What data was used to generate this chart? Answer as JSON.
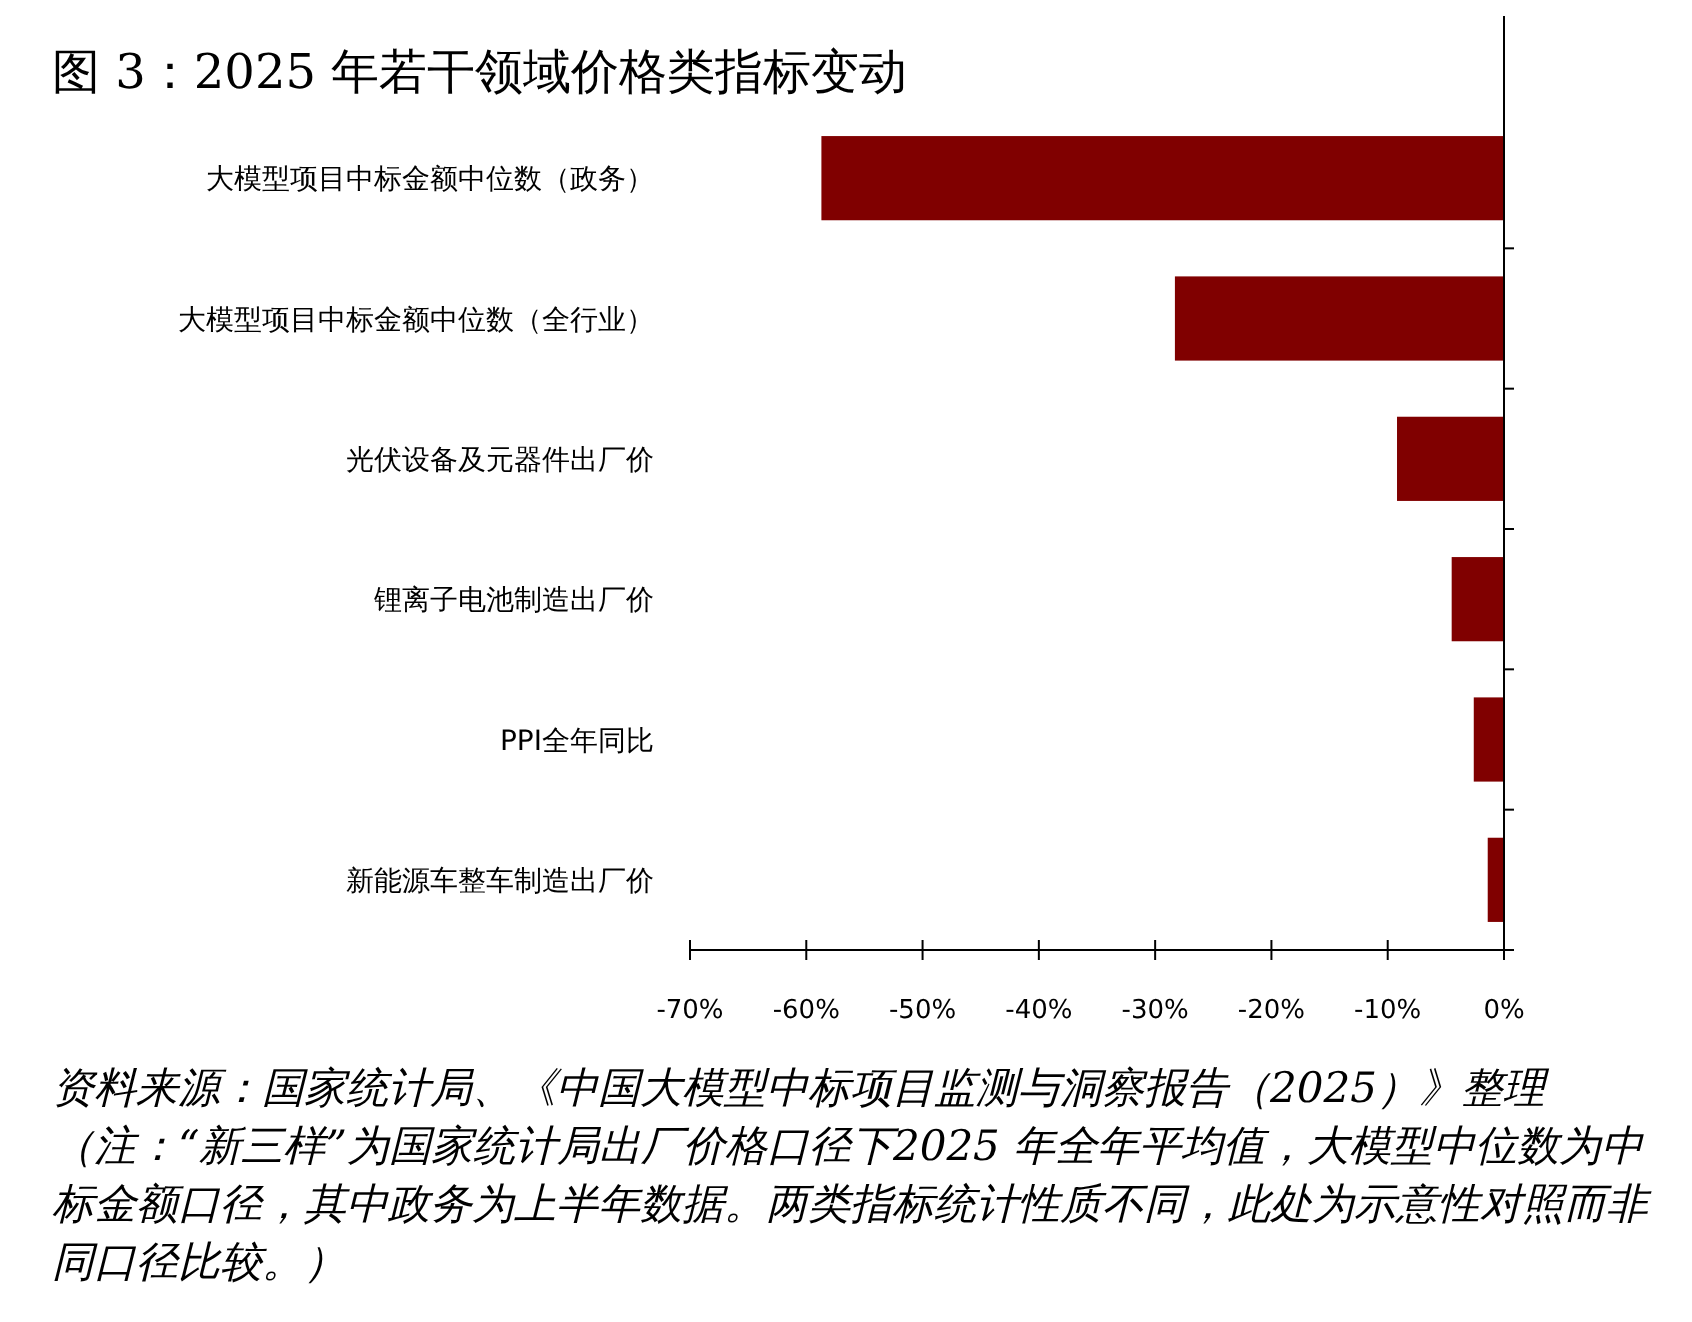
{
  "chart_data": {
    "type": "bar",
    "orientation": "horizontal",
    "title": "图 3：2025 年若干领域价格类指标变动",
    "categories": [
      "大模型项目中标金额中位数（政务）",
      "大模型项目中标金额中位数（全行业）",
      "光伏设备及元器件出厂价",
      "锂离子电池制造出厂价",
      "PPI全年同比",
      "新能源车整车制造出厂价"
    ],
    "values": [
      -58.7,
      -28.3,
      -9.2,
      -4.5,
      -2.6,
      -1.4
    ],
    "color": "#800000",
    "xlim": [
      -70,
      0
    ],
    "xticks": [
      {
        "value": -70,
        "label": "-70%"
      },
      {
        "value": -60,
        "label": "-60%"
      },
      {
        "value": -50,
        "label": "-50%"
      },
      {
        "value": -40,
        "label": "-40%"
      },
      {
        "value": -30,
        "label": "-30%"
      },
      {
        "value": -20,
        "label": "-20%"
      },
      {
        "value": -10,
        "label": "-10%"
      },
      {
        "value": 0,
        "label": "0%"
      }
    ],
    "grid": false,
    "annotations": [
      "资料来源：国家统计局、《中国大模型中标项目监测与洞察报告（2025）》整理（注：“新三样”为国家统计局出厂价格口径下2025 年全年平均值，大模型中位数为中标金额口径，其中政务为上半年数据。两类指标统计性质不同，此处为示意性对照而非同口径比较。）"
    ]
  }
}
